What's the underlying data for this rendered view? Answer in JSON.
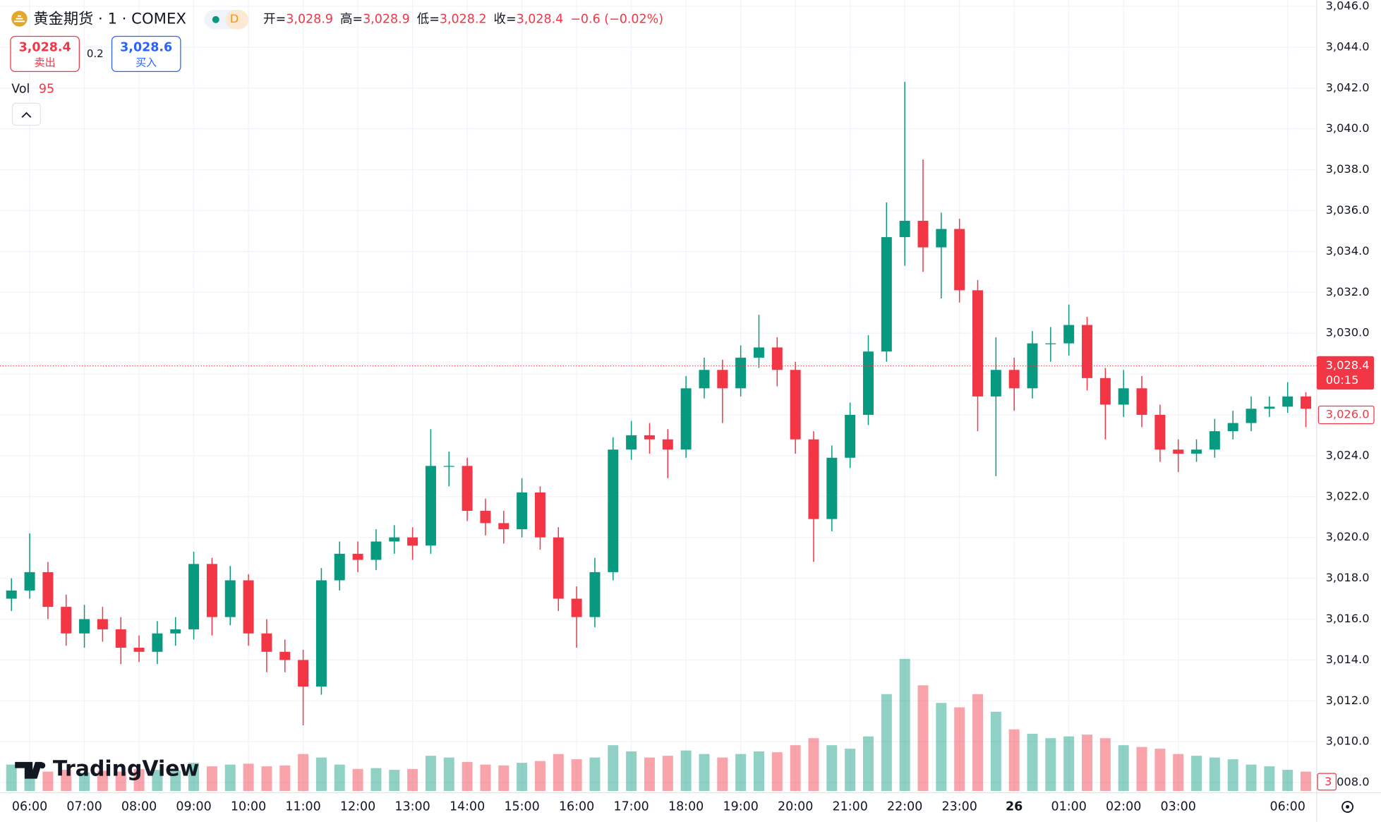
{
  "header": {
    "title": "黄金期货 · 1 · COMEX",
    "badge": "D",
    "ohlc": [
      {
        "label": "开=",
        "value": "3,028.9"
      },
      {
        "label": "高=",
        "value": "3,028.9"
      },
      {
        "label": "低=",
        "value": "3,028.2"
      },
      {
        "label": "收=",
        "value": "3,028.4"
      }
    ],
    "change": "−0.6 (−0.02%)",
    "sell": {
      "price": "3,028.4",
      "label": "卖出"
    },
    "spread": "0.2",
    "buy": {
      "price": "3,028.6",
      "label": "买入"
    },
    "vol_label": "Vol",
    "vol_value": "95",
    "logo": "TradingView"
  },
  "chart_data": {
    "type": "candlestick",
    "categories": [
      null,
      "06:00",
      null,
      null,
      "07:00",
      null,
      null,
      "08:00",
      null,
      null,
      "09:00",
      null,
      null,
      "10:00",
      null,
      null,
      "11:00",
      null,
      null,
      "12:00",
      null,
      null,
      "13:00",
      null,
      null,
      "14:00",
      null,
      null,
      "15:00",
      null,
      null,
      "16:00",
      null,
      null,
      "17:00",
      null,
      null,
      "18:00",
      null,
      null,
      "19:00",
      null,
      null,
      "20:00",
      null,
      null,
      "21:00",
      null,
      null,
      "22:00",
      null,
      null,
      "23:00",
      null,
      null,
      "26",
      null,
      null,
      "01:00",
      null,
      null,
      "02:00",
      null,
      null,
      "03:00",
      null,
      null,
      null,
      null,
      null,
      "06:00",
      null
    ],
    "open": [
      3017.0,
      3017.4,
      3018.3,
      3016.6,
      3015.3,
      3016.0,
      3015.5,
      3014.6,
      3014.4,
      3015.3,
      3015.5,
      3018.7,
      3016.1,
      3017.9,
      3015.3,
      3014.4,
      3014.0,
      3012.7,
      3017.9,
      3019.2,
      3018.9,
      3019.8,
      3020.0,
      3019.6,
      3023.5,
      3023.5,
      3021.3,
      3020.7,
      3020.4,
      3022.2,
      3020.0,
      3017.0,
      3016.1,
      3018.3,
      3024.3,
      3025.0,
      3024.8,
      3024.3,
      3027.3,
      3028.2,
      3027.3,
      3028.8,
      3029.3,
      3028.2,
      3024.8,
      3020.9,
      3023.9,
      3026.0,
      3029.1,
      3034.7,
      3035.5,
      3034.2,
      3035.1,
      3032.1,
      3026.9,
      3028.2,
      3027.3,
      3029.5,
      3029.5,
      3030.4,
      3027.8,
      3026.5,
      3027.3,
      3026.0,
      3024.3,
      3024.1,
      3024.3,
      3025.2,
      3025.6,
      3026.3,
      3026.4,
      3026.9
    ],
    "high": [
      3018.0,
      3020.2,
      3018.8,
      3017.2,
      3016.7,
      3016.6,
      3016.1,
      3015.2,
      3015.9,
      3016.1,
      3019.3,
      3019.0,
      3018.6,
      3018.2,
      3016.0,
      3015.0,
      3014.5,
      3018.5,
      3019.8,
      3019.8,
      3020.4,
      3020.6,
      3020.5,
      3025.3,
      3024.2,
      3023.9,
      3021.9,
      3021.3,
      3022.9,
      3022.5,
      3020.5,
      3017.6,
      3019.0,
      3024.9,
      3025.7,
      3025.6,
      3025.3,
      3027.9,
      3028.8,
      3028.7,
      3029.4,
      3030.9,
      3029.8,
      3028.6,
      3025.2,
      3024.5,
      3026.6,
      3029.9,
      3036.4,
      3042.3,
      3038.5,
      3035.9,
      3035.6,
      3032.6,
      3029.8,
      3028.8,
      3030.1,
      3030.3,
      3031.4,
      3030.8,
      3028.3,
      3028.2,
      3027.9,
      3026.5,
      3024.8,
      3024.8,
      3025.8,
      3026.2,
      3026.9,
      3026.9,
      3027.6,
      3027.1
    ],
    "low": [
      3016.4,
      3017.0,
      3016.0,
      3014.7,
      3014.6,
      3014.9,
      3013.8,
      3013.9,
      3013.8,
      3014.7,
      3015.0,
      3015.2,
      3015.7,
      3014.7,
      3013.4,
      3013.4,
      3010.8,
      3012.3,
      3017.4,
      3018.3,
      3018.4,
      3019.2,
      3018.9,
      3019.2,
      3022.5,
      3020.8,
      3020.1,
      3019.7,
      3020.0,
      3019.4,
      3016.4,
      3014.6,
      3015.6,
      3017.9,
      3023.8,
      3024.1,
      3022.9,
      3023.9,
      3026.8,
      3025.6,
      3026.9,
      3028.3,
      3027.4,
      3024.1,
      3018.8,
      3020.3,
      3023.4,
      3025.5,
      3028.6,
      3033.3,
      3033.0,
      3031.7,
      3031.5,
      3025.2,
      3023.0,
      3026.2,
      3026.8,
      3028.6,
      3028.9,
      3027.2,
      3024.8,
      3025.9,
      3025.4,
      3023.7,
      3023.2,
      3023.7,
      3023.9,
      3024.8,
      3025.2,
      3025.9,
      3026.1,
      3025.4
    ],
    "close": [
      3017.4,
      3018.3,
      3016.6,
      3015.3,
      3016.0,
      3015.5,
      3014.6,
      3014.4,
      3015.3,
      3015.5,
      3018.7,
      3016.1,
      3017.9,
      3015.3,
      3014.4,
      3014.0,
      3012.7,
      3017.9,
      3019.2,
      3018.9,
      3019.8,
      3020.0,
      3019.6,
      3023.5,
      3023.5,
      3021.3,
      3020.7,
      3020.4,
      3022.2,
      3020.0,
      3017.0,
      3016.1,
      3018.3,
      3024.3,
      3025.0,
      3024.8,
      3024.3,
      3027.3,
      3028.2,
      3027.3,
      3028.8,
      3029.3,
      3028.2,
      3024.8,
      3020.9,
      3023.9,
      3026.0,
      3029.1,
      3034.7,
      3035.5,
      3034.2,
      3035.1,
      3032.1,
      3026.9,
      3028.2,
      3027.3,
      3029.5,
      3029.5,
      3030.4,
      3027.8,
      3026.5,
      3027.3,
      3026.0,
      3024.3,
      3024.1,
      3024.3,
      3025.2,
      3025.6,
      3026.3,
      3026.4,
      3026.9,
      3026.3
    ],
    "volume": [
      300,
      260,
      220,
      240,
      210,
      230,
      220,
      250,
      240,
      230,
      320,
      280,
      300,
      310,
      280,
      290,
      420,
      380,
      300,
      250,
      260,
      240,
      250,
      400,
      380,
      330,
      300,
      290,
      320,
      340,
      420,
      360,
      380,
      520,
      450,
      380,
      400,
      460,
      420,
      380,
      420,
      450,
      440,
      520,
      600,
      520,
      480,
      620,
      1100,
      1500,
      1200,
      1000,
      950,
      1100,
      900,
      700,
      650,
      600,
      620,
      640,
      600,
      520,
      500,
      480,
      420,
      400,
      380,
      360,
      300,
      280,
      240,
      220
    ],
    "ylim": [
      3007.5,
      3046.3
    ],
    "yticks": [
      {
        "value": 3008,
        "label": "3,008.0"
      },
      {
        "value": 3010,
        "label": "3,010.0"
      },
      {
        "value": 3012,
        "label": "3,012.0"
      },
      {
        "value": 3014,
        "label": "3,014.0"
      },
      {
        "value": 3016,
        "label": "3,016.0"
      },
      {
        "value": 3018,
        "label": "3,018.0"
      },
      {
        "value": 3020,
        "label": "3,020.0"
      },
      {
        "value": 3022,
        "label": "3,022.0"
      },
      {
        "value": 3024,
        "label": "3,024.0"
      },
      {
        "value": 3026,
        "label": "3,026.0"
      },
      {
        "value": 3028,
        "label": "3,028.0"
      },
      {
        "value": 3030,
        "label": "3,030.0"
      },
      {
        "value": 3032,
        "label": "3,032.0"
      },
      {
        "value": 3034,
        "label": "3,034.0"
      },
      {
        "value": 3036,
        "label": "3,036.0"
      },
      {
        "value": 3038,
        "label": "3,038.0"
      },
      {
        "value": 3040,
        "label": "3,040.0"
      },
      {
        "value": 3042,
        "label": "3,042.0"
      },
      {
        "value": 3044,
        "label": "3,044.0"
      },
      {
        "value": 3046,
        "label": "3,046.0"
      }
    ],
    "vlim": [
      0,
      3000
    ],
    "grid": true,
    "colors": {
      "up": "#089981",
      "down": "#f23645"
    },
    "last_price": {
      "value": 3028.4,
      "label": "3,028.4"
    },
    "countdown": "00:15",
    "marker_price": {
      "value": 3026,
      "label": "3,026.0"
    },
    "marker_note": "3"
  }
}
